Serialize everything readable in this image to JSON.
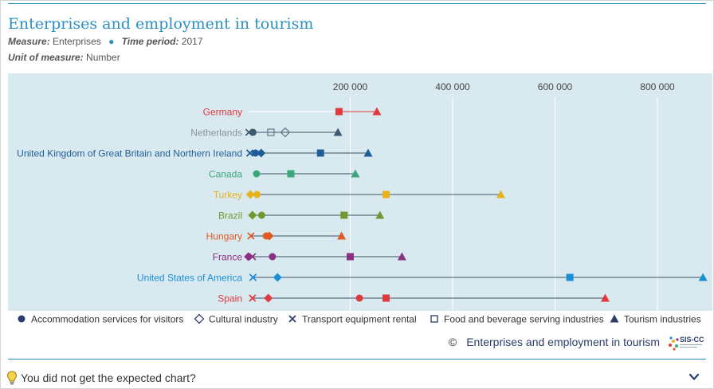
{
  "page": {
    "title": "Enterprises and employment in tourism",
    "measure_label": "Measure:",
    "measure_value": "Enterprises",
    "time_label": "Time period:",
    "time_value": "2017",
    "unit_label": "Unit of measure:",
    "unit_value": "Number",
    "copyright_symbol": "©",
    "copyright_text": "Enterprises and employment in tourism",
    "logo_text": "SIS-CC",
    "question_text": "You did not get the expected chart?",
    "question_icon": "lightbulb-icon",
    "expand_icon": "chevron-down-icon"
  },
  "colors": {
    "accent": "#2b8fc0",
    "plot_background": "#d9e9f0",
    "navy": "#2b3d6b",
    "Germany": "#e0393e",
    "Netherlands": "#85939e",
    "United Kingdom of Great Britain and Northern Ireland": "#1f5d99",
    "Canada": "#3aa97a",
    "Turkey": "#e8b21a",
    "Brazil": "#6f9a2e",
    "Hungary": "#e05a24",
    "France": "#8c3083",
    "United States of America": "#1a8fd6",
    "Spain": "#e0393e",
    "legend_marker": "#2b3d6b"
  },
  "chart_data": {
    "type": "dot-plot",
    "title": "Enterprises and employment in tourism",
    "xlim": [
      0,
      900000
    ],
    "x_ticks": [
      200000,
      400000,
      600000,
      800000
    ],
    "x_tick_labels": [
      "200 000",
      "400 000",
      "600 000",
      "800 000"
    ],
    "x_axis_position": "top",
    "grid": true,
    "legend_position": "bottom",
    "series": [
      {
        "name": "Accommodation services for visitors",
        "marker": "circle"
      },
      {
        "name": "Cultural industry",
        "marker": "diamond-open"
      },
      {
        "name": "Transport equipment rental",
        "marker": "cross"
      },
      {
        "name": "Food and beverage serving industries",
        "marker": "square-open"
      },
      {
        "name": "Tourism industries",
        "marker": "triangle"
      }
    ],
    "categories": [
      {
        "name": "Germany",
        "values": {
          "Food and beverage serving industries": 178000,
          "Tourism industries": 252000
        }
      },
      {
        "name": "Netherlands",
        "values": {
          "Transport equipment rental": 2000,
          "Accommodation services for visitors": 10000,
          "Food and beverage serving industries": 45000,
          "Cultural industry": 73000,
          "Tourism industries": 176000
        }
      },
      {
        "name": "United Kingdom of Great Britain and Northern Ireland",
        "values": {
          "Transport equipment rental": 4000,
          "Accommodation services for visitors": 15000,
          "Cultural industry": 26000,
          "Food and beverage serving industries": 142000,
          "Tourism industries": 235000
        }
      },
      {
        "name": "Canada",
        "values": {
          "Accommodation services for visitors": 17000,
          "Food and beverage serving industries": 84000,
          "Tourism industries": 210000
        }
      },
      {
        "name": "Turkey",
        "values": {
          "Cultural industry": 5000,
          "Accommodation services for visitors": 18000,
          "Food and beverage serving industries": 270000,
          "Tourism industries": 494000
        }
      },
      {
        "name": "Brazil",
        "values": {
          "Cultural industry": 9000,
          "Accommodation services for visitors": 27000,
          "Food and beverage serving industries": 188000,
          "Tourism industries": 258000
        }
      },
      {
        "name": "Hungary",
        "values": {
          "Transport equipment rental": 6000,
          "Accommodation services for visitors": 36000,
          "Cultural industry": 42000,
          "Tourism industries": 183000
        }
      },
      {
        "name": "France",
        "values": {
          "Cultural industry": 1000,
          "Transport equipment rental": 9000,
          "Accommodation services for visitors": 48000,
          "Food and beverage serving industries": 200000,
          "Tourism industries": 301000
        }
      },
      {
        "name": "United States of America",
        "values": {
          "Transport equipment rental": 10000,
          "Cultural industry": 58000,
          "Food and beverage serving industries": 629000,
          "Tourism industries": 889000
        }
      },
      {
        "name": "Spain",
        "values": {
          "Transport equipment rental": 9000,
          "Cultural industry": 40000,
          "Accommodation services for visitors": 218000,
          "Food and beverage serving industries": 270000,
          "Tourism industries": 698000
        }
      }
    ]
  }
}
